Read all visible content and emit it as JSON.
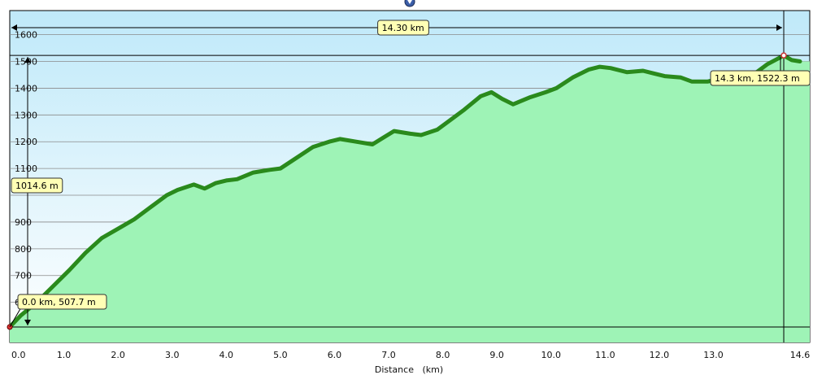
{
  "chart_data": {
    "type": "area",
    "xlabel": "Distance   (km)",
    "ylabel": "",
    "xlim": [
      0,
      14.6
    ],
    "ylim": [
      450,
      1690
    ],
    "x_ticks": [
      0,
      1,
      2,
      3,
      4,
      5,
      6,
      7,
      8,
      9,
      10,
      11,
      12,
      13,
      14.6
    ],
    "x_tick_labels": [
      "0.0",
      "1.0",
      "2.0",
      "3.0",
      "4.0",
      "5.0",
      "6.0",
      "7.0",
      "8.0",
      "9.0",
      "10.0",
      "11.0",
      "12.0",
      "13.0",
      "14.6"
    ],
    "y_ticks": [
      600,
      700,
      800,
      900,
      1100,
      1200,
      1300,
      1400,
      1500,
      1600
    ],
    "y_tick_labels": [
      "600",
      "700",
      "800",
      "900",
      "1100",
      "1200",
      "1300",
      "1400",
      "1500",
      "1600"
    ],
    "grid": true,
    "series": [
      {
        "x": [
          0.0,
          0.2,
          0.5,
          0.8,
          1.1,
          1.4,
          1.7,
          2.0,
          2.3,
          2.6,
          2.9,
          3.1,
          3.4,
          3.6,
          3.8,
          4.0,
          4.2,
          4.5,
          4.8,
          5.0,
          5.3,
          5.6,
          5.9,
          6.1,
          6.4,
          6.7,
          6.9,
          7.1,
          7.4,
          7.6,
          7.9,
          8.1,
          8.4,
          8.7,
          8.9,
          9.1,
          9.3,
          9.6,
          9.9,
          10.1,
          10.4,
          10.7,
          10.9,
          11.1,
          11.4,
          11.7,
          11.9,
          12.1,
          12.4,
          12.6,
          12.9,
          13.2,
          13.5,
          13.8,
          14.0,
          14.3,
          14.45,
          14.6
        ],
        "y": [
          508,
          550,
          600,
          660,
          720,
          785,
          840,
          875,
          910,
          955,
          1000,
          1020,
          1040,
          1025,
          1045,
          1055,
          1060,
          1085,
          1095,
          1100,
          1140,
          1180,
          1200,
          1210,
          1200,
          1190,
          1215,
          1240,
          1230,
          1225,
          1245,
          1275,
          1320,
          1370,
          1385,
          1360,
          1340,
          1365,
          1385,
          1400,
          1440,
          1470,
          1480,
          1475,
          1460,
          1465,
          1455,
          1445,
          1440,
          1425,
          1425,
          1440,
          1450,
          1460,
          1490,
          1522,
          1505,
          1500
        ]
      }
    ],
    "total_label": "14.30 km",
    "start_callout": "0.0 km, 507.7 m",
    "end_callout": "14.3 km, 1522.3 m",
    "gain_label": "1014.6 m",
    "start_point": [
      0.0,
      507.7
    ],
    "end_point": [
      14.3,
      1522.3
    ],
    "colors": {
      "area_fill": "#9ef3b6",
      "line": "#2a8a1c",
      "sky_top": "#bfe9f9",
      "sky_bottom": "#ffffff",
      "callout_fill": "#ffffb5"
    }
  }
}
